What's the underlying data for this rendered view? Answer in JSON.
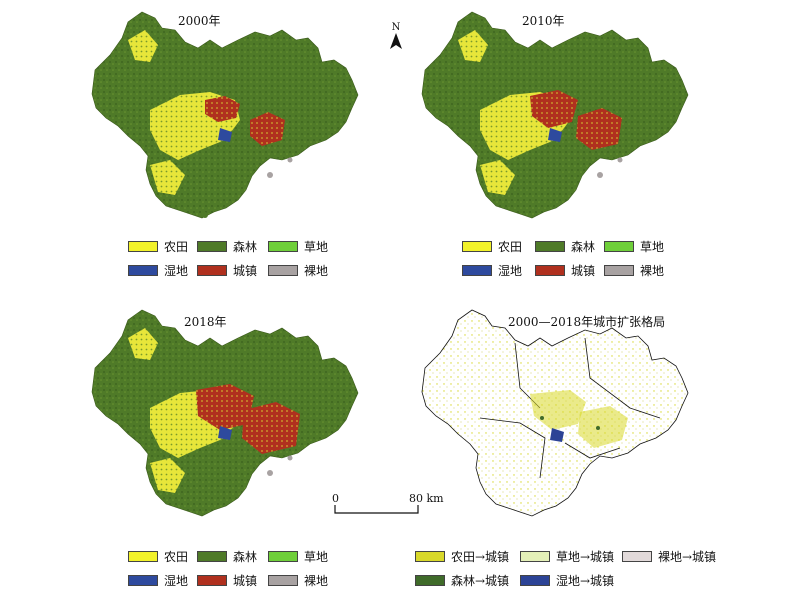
{
  "panels": [
    {
      "title": "2000年"
    },
    {
      "title": "2010年"
    },
    {
      "title": "2018年"
    },
    {
      "title": "2000—2018年城市扩张格局"
    }
  ],
  "landcover_legend": [
    {
      "label": "农田",
      "color": "#f2f22a"
    },
    {
      "label": "森林",
      "color": "#4f7a28"
    },
    {
      "label": "草地",
      "color": "#6fcf3a"
    },
    {
      "label": "湿地",
      "color": "#2e4a9e"
    },
    {
      "label": "城镇",
      "color": "#b0301e"
    },
    {
      "label": "裸地",
      "color": "#a8a2a2"
    }
  ],
  "expansion_legend": [
    {
      "label": "农田→城镇",
      "color": "#d8d82a"
    },
    {
      "label": "草地→城镇",
      "color": "#e4f0b8"
    },
    {
      "label": "裸地→城镇",
      "color": "#e2dada"
    },
    {
      "label": "森林→城镇",
      "color": "#3f6b2a"
    },
    {
      "label": "湿地→城镇",
      "color": "#2c4396"
    }
  ],
  "north_arrow": {
    "label": "N"
  },
  "scale": {
    "start": "0",
    "end": "80 km"
  }
}
